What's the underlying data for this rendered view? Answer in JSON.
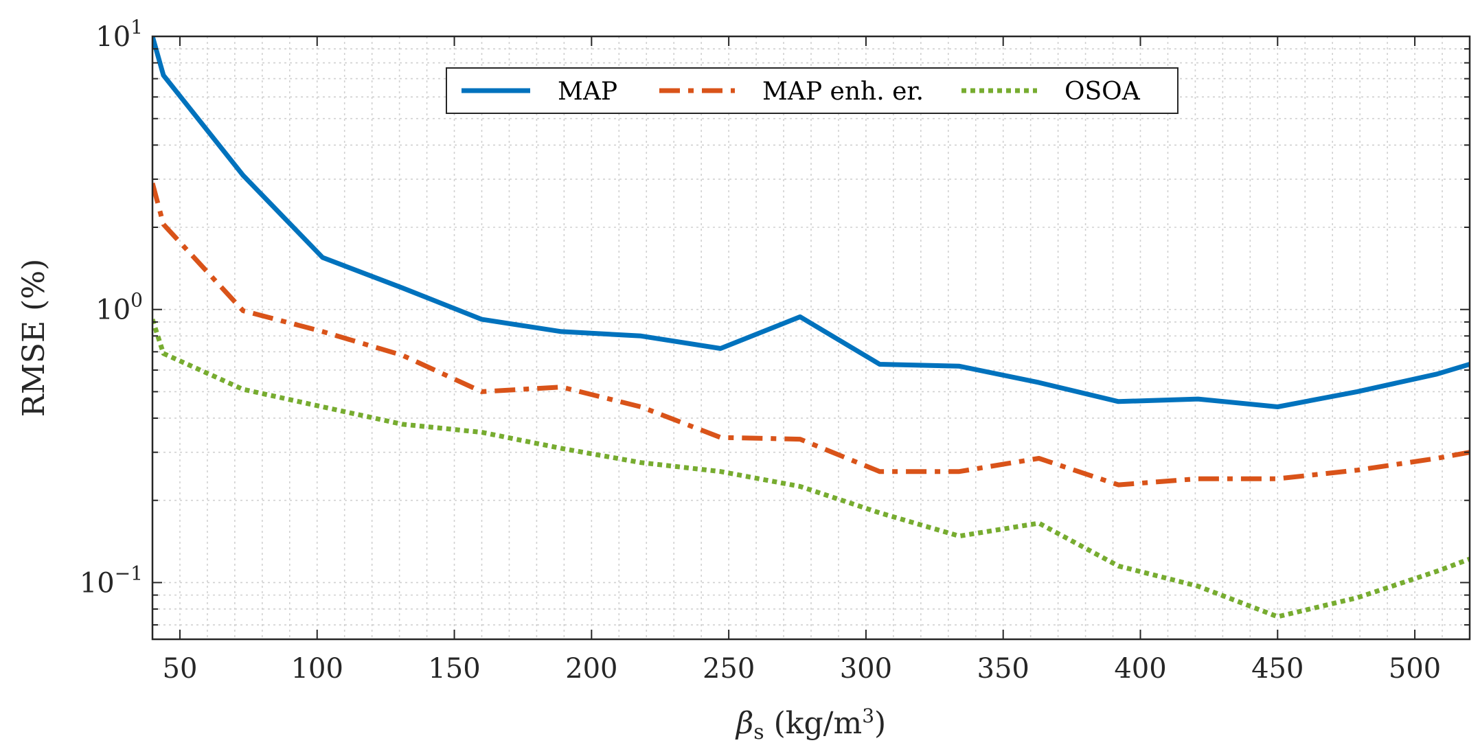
{
  "chart_data": {
    "type": "line",
    "title": "",
    "xlabel_symbol": "β",
    "xlabel_subscript": "s",
    "xlabel_units": " (kg/m",
    "xlabel_units_sup": "3",
    "xlabel_close": ")",
    "ylabel": "RMSE (%)",
    "yscale": "log",
    "xlim": [
      40,
      520
    ],
    "ylim": [
      0.062,
      10
    ],
    "grid": true,
    "legend_position": "top-center",
    "x_ticks": [
      50,
      100,
      150,
      200,
      250,
      300,
      350,
      400,
      450,
      500
    ],
    "x_tick_labels": [
      "50",
      "100",
      "150",
      "200",
      "250",
      "300",
      "350",
      "400",
      "450",
      "500"
    ],
    "y_ticks": [
      {
        "value": 10,
        "base": "10",
        "exp": "1"
      },
      {
        "value": 1,
        "base": "10",
        "exp": "0"
      },
      {
        "value": 0.1,
        "base": "10",
        "exp": "−1"
      }
    ],
    "series": [
      {
        "name": "MAP",
        "color": "#0072BD",
        "style": "solid",
        "x": [
          40,
          44,
          73,
          102,
          131,
          160,
          189,
          218,
          247,
          276,
          305,
          334,
          363,
          392,
          421,
          450,
          479,
          508,
          520
        ],
        "values": [
          10,
          7.2,
          3.1,
          1.55,
          1.2,
          0.92,
          0.83,
          0.8,
          0.72,
          0.94,
          0.63,
          0.62,
          0.54,
          0.46,
          0.47,
          0.44,
          0.5,
          0.58,
          0.63
        ]
      },
      {
        "name": "MAP enh. er.",
        "color": "#D95319",
        "style": "dashdot",
        "x": [
          40,
          44,
          73,
          102,
          131,
          160,
          189,
          218,
          247,
          276,
          305,
          334,
          363,
          392,
          421,
          450,
          479,
          508,
          520
        ],
        "values": [
          2.9,
          2.05,
          0.99,
          0.83,
          0.68,
          0.5,
          0.52,
          0.44,
          0.34,
          0.335,
          0.255,
          0.255,
          0.285,
          0.228,
          0.24,
          0.24,
          0.258,
          0.285,
          0.3
        ]
      },
      {
        "name": "OSOA",
        "color": "#77AC30",
        "style": "dotted",
        "x": [
          40,
          44,
          73,
          102,
          131,
          160,
          189,
          218,
          247,
          276,
          305,
          334,
          363,
          392,
          421,
          450,
          479,
          508,
          520
        ],
        "values": [
          0.92,
          0.69,
          0.51,
          0.44,
          0.38,
          0.355,
          0.31,
          0.275,
          0.255,
          0.225,
          0.18,
          0.148,
          0.165,
          0.115,
          0.097,
          0.075,
          0.088,
          0.11,
          0.122
        ]
      }
    ]
  }
}
